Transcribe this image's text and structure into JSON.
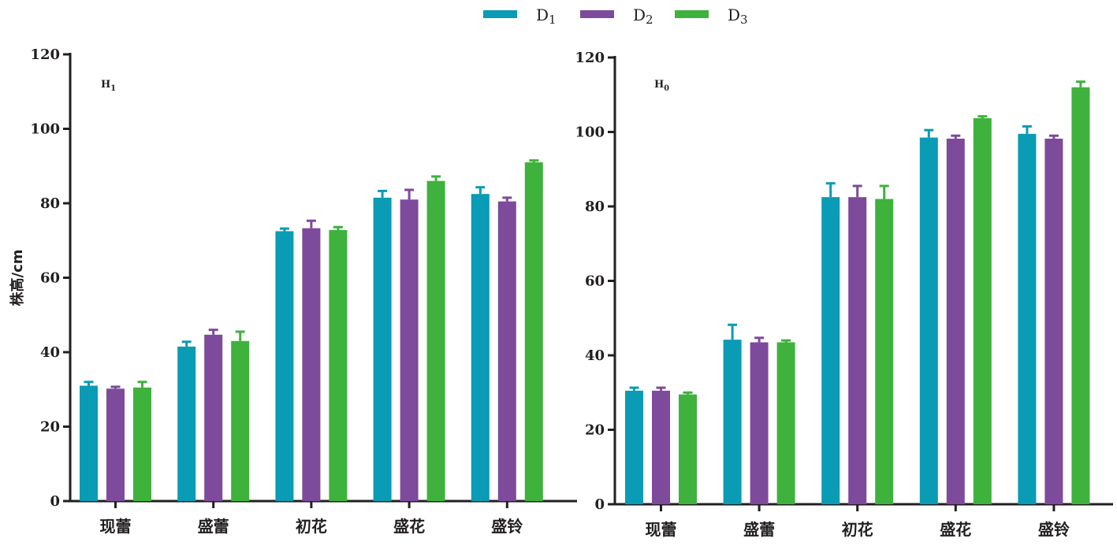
{
  "legend": [
    {
      "label": "D1",
      "base": "D",
      "sub": "1",
      "color": "#0a9bb5"
    },
    {
      "label": "D2",
      "base": "D",
      "sub": "2",
      "color": "#7e4a9b"
    },
    {
      "label": "D3",
      "base": "D",
      "sub": "3",
      "color": "#3eb23c"
    }
  ],
  "chart_data": [
    {
      "type": "bar",
      "panel_label": "H1",
      "panel_label_base": "H",
      "panel_label_sub": "1",
      "ylabel": "株高/cm",
      "ylim": [
        0,
        120
      ],
      "yticks": [
        0,
        20,
        40,
        60,
        80,
        100,
        120
      ],
      "grid": false,
      "categories": [
        "现蕾",
        "盛蕾",
        "初花",
        "盛花",
        "盛铃"
      ],
      "series": [
        {
          "name": "D1",
          "color": "#0a9bb5",
          "values": [
            31,
            41.5,
            72.5,
            81.5,
            82.5
          ],
          "errors": [
            1,
            1.3,
            0.7,
            1.8,
            1.8
          ]
        },
        {
          "name": "D2",
          "color": "#7e4a9b",
          "values": [
            30.2,
            44.7,
            73.3,
            81,
            80.5
          ],
          "errors": [
            0.5,
            1.3,
            2,
            2.6,
            1
          ]
        },
        {
          "name": "D3",
          "color": "#3eb23c",
          "values": [
            30.5,
            43,
            72.8,
            86,
            91
          ],
          "errors": [
            1.5,
            2.5,
            0.8,
            1.2,
            0.5
          ]
        }
      ]
    },
    {
      "type": "bar",
      "panel_label": "H0",
      "panel_label_base": "H",
      "panel_label_sub": "0",
      "ylabel": "",
      "ylim": [
        0,
        120
      ],
      "yticks": [
        0,
        20,
        40,
        60,
        80,
        100,
        120
      ],
      "grid": false,
      "categories": [
        "现蕾",
        "盛蕾",
        "初花",
        "盛花",
        "盛铃"
      ],
      "series": [
        {
          "name": "D1",
          "color": "#0a9bb5",
          "values": [
            30.5,
            44.2,
            82.5,
            98.5,
            99.5
          ],
          "errors": [
            0.8,
            4,
            3.7,
            2,
            2
          ]
        },
        {
          "name": "D2",
          "color": "#7e4a9b",
          "values": [
            30.5,
            43.5,
            82.5,
            98.2,
            98.2
          ],
          "errors": [
            0.8,
            1.2,
            3,
            0.8,
            0.8
          ]
        },
        {
          "name": "D3",
          "color": "#3eb23c",
          "values": [
            29.5,
            43.5,
            82,
            103.7,
            112
          ],
          "errors": [
            0.5,
            0.5,
            3.5,
            0.5,
            1.5
          ]
        }
      ]
    }
  ]
}
